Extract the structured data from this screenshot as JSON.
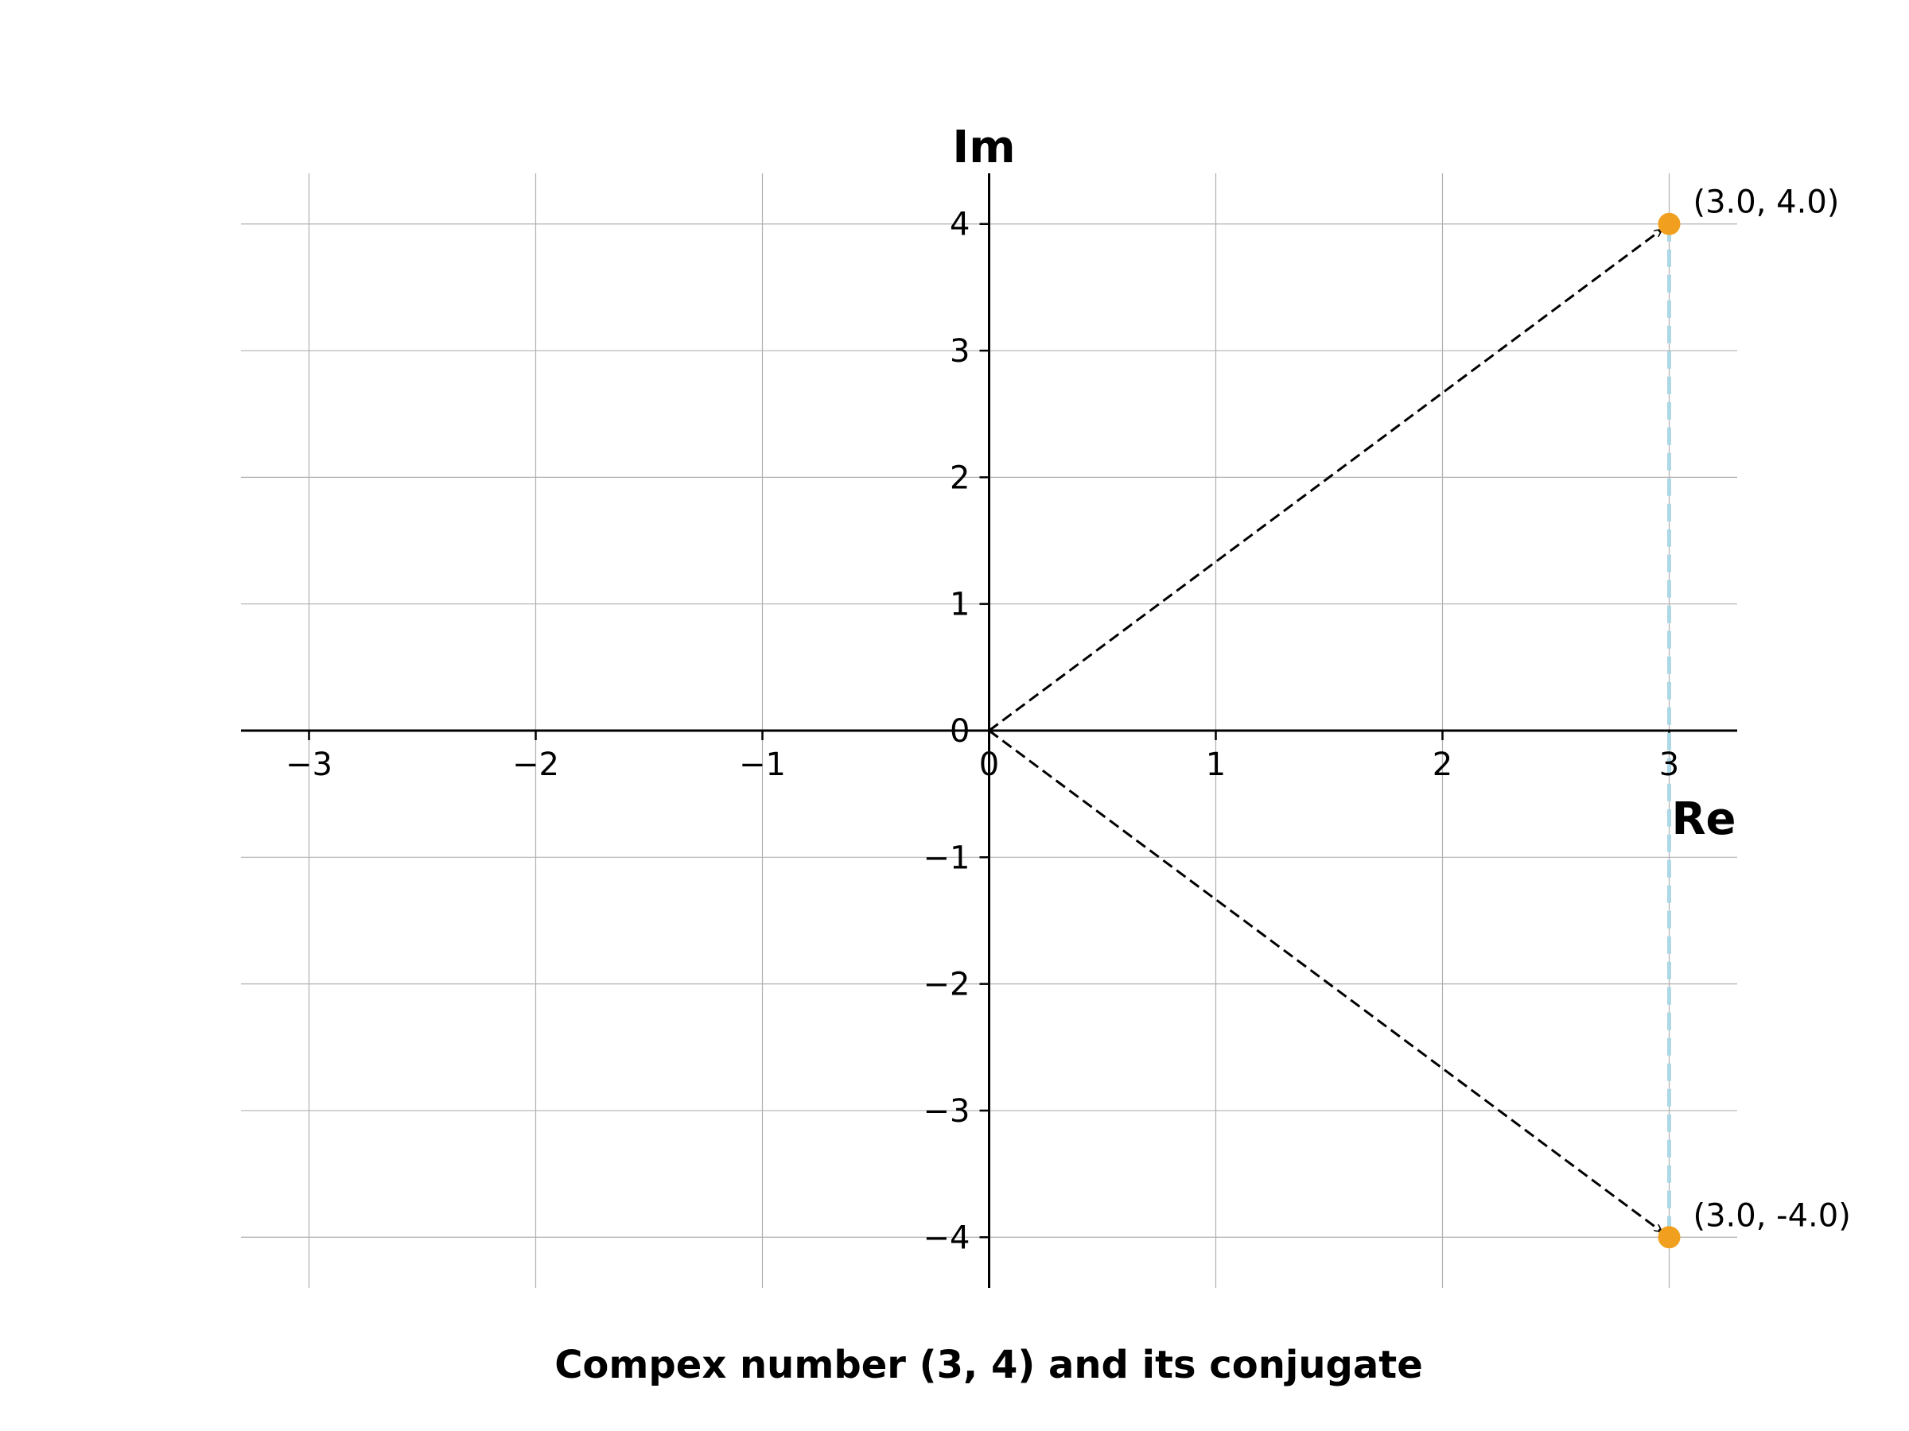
{
  "chart_data": {
    "type": "scatter",
    "title": "Compex number (3, 4) and its conjugate",
    "xlabel": "Re",
    "ylabel": "Im",
    "xlim": [
      -3.3,
      3.3
    ],
    "ylim": [
      -4.4,
      4.4
    ],
    "xticks": [
      -3,
      -2,
      -1,
      0,
      1,
      2,
      3
    ],
    "yticks": [
      -4,
      -3,
      -2,
      -1,
      0,
      1,
      2,
      3,
      4
    ],
    "xtick_labels": [
      "−3",
      "−2",
      "−1",
      "0",
      "1",
      "2",
      "3"
    ],
    "ytick_labels": [
      "−4",
      "−3",
      "−2",
      "−1",
      "0",
      "1",
      "2",
      "3",
      "4"
    ],
    "grid": true,
    "points": [
      {
        "x": 3.0,
        "y": 4.0,
        "label": "(3.0, 4.0)"
      },
      {
        "x": 3.0,
        "y": -4.0,
        "label": "(3.0, -4.0)"
      }
    ],
    "vectors": [
      {
        "from": [
          0,
          0
        ],
        "to": [
          3.0,
          4.0
        ],
        "style": "dashed-arrow"
      },
      {
        "from": [
          0,
          0
        ],
        "to": [
          3.0,
          -4.0
        ],
        "style": "dashed-arrow"
      }
    ],
    "connector": {
      "from": [
        3.0,
        4.0
      ],
      "to": [
        3.0,
        -4.0
      ],
      "style": "dashed"
    },
    "colors": {
      "points": "#f0a01e",
      "connector": "#add8e6",
      "vectors": "#000000",
      "grid": "#b0b0b0",
      "axes": "#000000"
    }
  }
}
